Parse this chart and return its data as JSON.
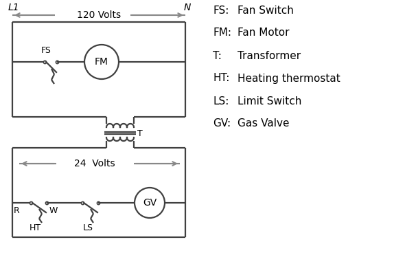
{
  "bg_color": "#ffffff",
  "line_color": "#404040",
  "arrow_color": "#888888",
  "text_color": "#000000",
  "legend": [
    [
      "FS:",
      "Fan Switch"
    ],
    [
      "FM:",
      "Fan Motor"
    ],
    [
      "T:",
      "Transformer"
    ],
    [
      "HT:",
      "Heating thermostat"
    ],
    [
      "LS:",
      "Limit Switch"
    ],
    [
      "GV:",
      "Gas Valve"
    ]
  ],
  "title_L1": "L1",
  "title_N": "N",
  "volts120": "120 Volts",
  "volts24": "24  Volts",
  "label_T": "T",
  "label_R": "R",
  "label_W": "W",
  "label_FS": "FS",
  "label_FM": "FM",
  "label_HT": "HT",
  "label_LS": "LS",
  "label_GV": "GV"
}
